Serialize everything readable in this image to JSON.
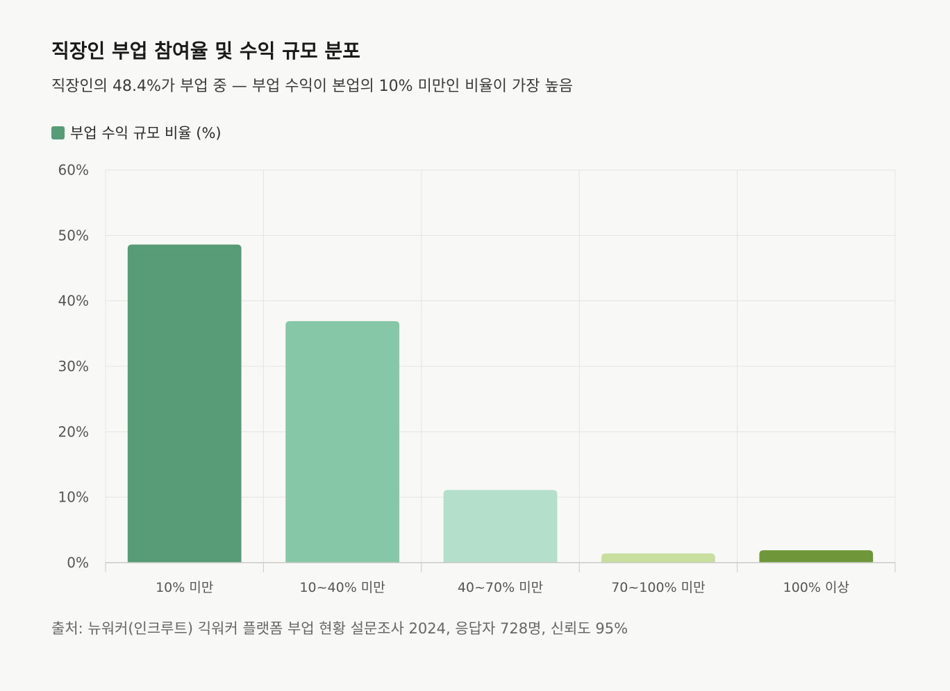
{
  "header": {
    "title": "직장인 부업 참여율 및 수익 규모 분포",
    "subtitle": "직장인의 48.4%가 부업 중 — 부업 수익이 본업의 10% 미만인 비율이 가장 높음"
  },
  "legend": {
    "label": "부업 수익 규모 비율 (%)",
    "color": "#579c76"
  },
  "chart_data": {
    "type": "bar",
    "categories": [
      "10% 미만",
      "10~40% 미만",
      "40~70% 미만",
      "70~100% 미만",
      "100% 이상"
    ],
    "values": [
      48.6,
      36.9,
      11.1,
      1.4,
      1.9
    ],
    "colors": [
      "#579c76",
      "#86c7a7",
      "#b3dfcb",
      "#c8dfa0",
      "#6f9739"
    ],
    "series": [
      {
        "name": "부업 수익 규모 비율 (%)",
        "values": [
          48.6,
          36.9,
          11.1,
          1.4,
          1.9
        ]
      }
    ],
    "ylim": [
      0,
      60
    ],
    "yticks": [
      0,
      10,
      20,
      30,
      40,
      50,
      60
    ],
    "ytick_labels": [
      "0%",
      "10%",
      "20%",
      "30%",
      "40%",
      "50%",
      "60%"
    ],
    "grid": true,
    "legend_position": "top-left"
  },
  "footer": {
    "source": "출처: 뉴워커(인크루트) 긱워커 플랫폼 부업 현황 설문조사 2024, 응답자 728명, 신뢰도 95%"
  }
}
